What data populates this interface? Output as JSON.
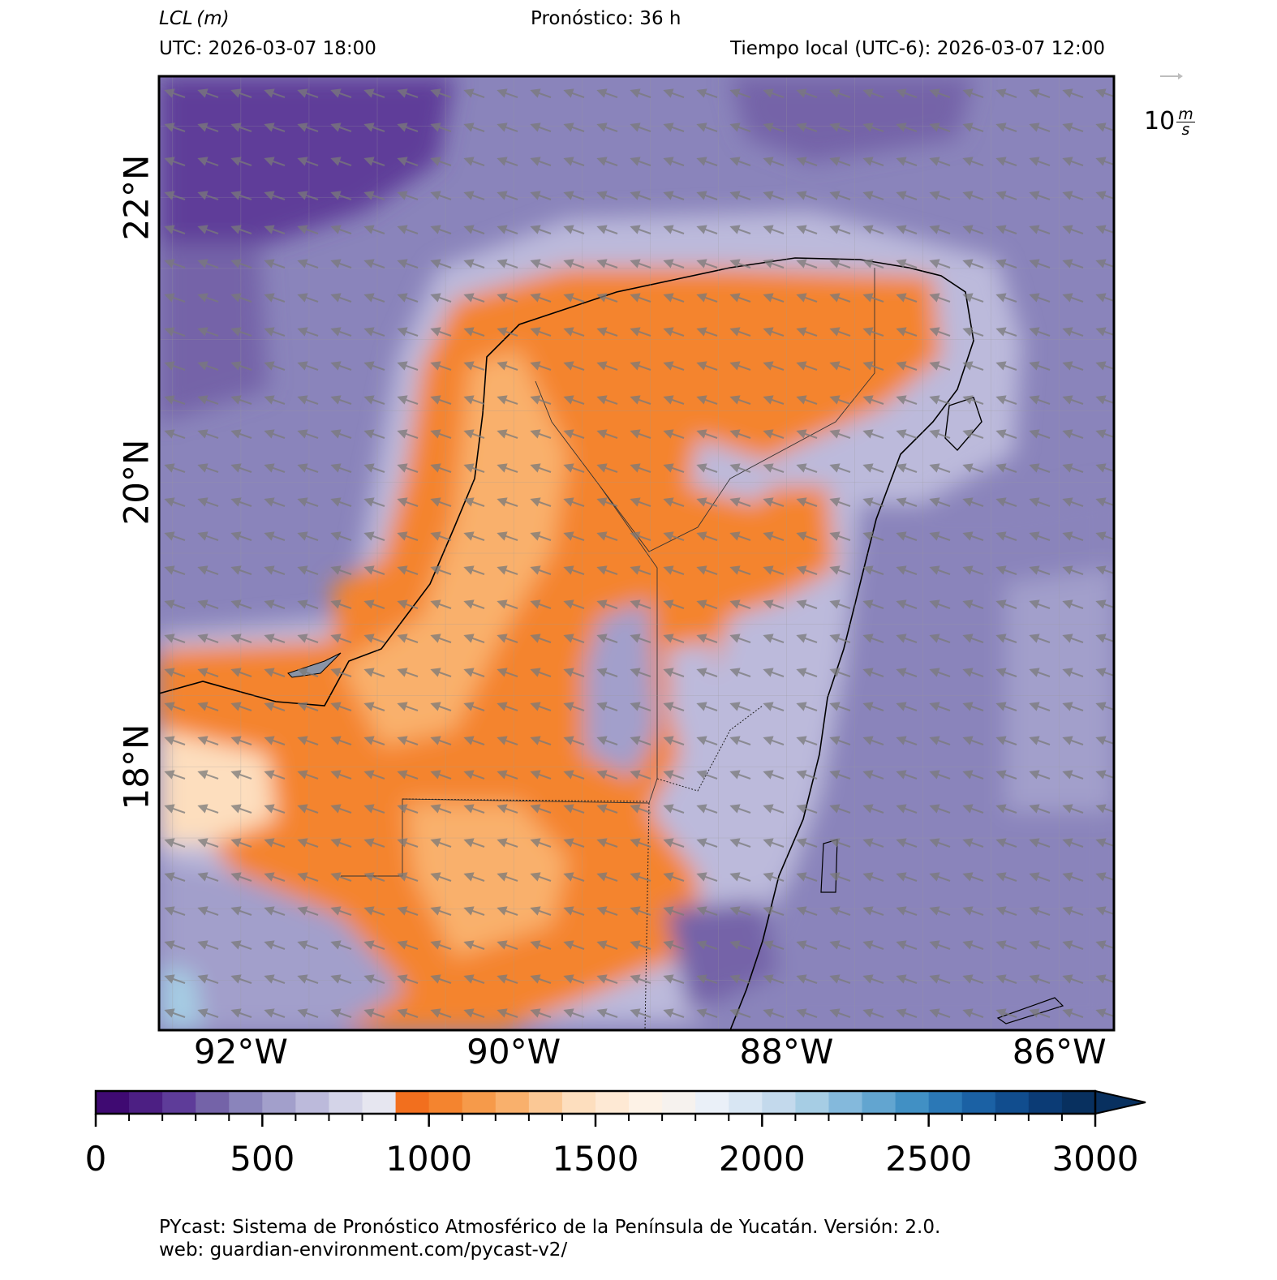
{
  "header": {
    "variable": "LCL",
    "unit": "(m)",
    "forecast": "Pronóstico: 36 h",
    "utc": "UTC:  2026-03-07 18:00",
    "local": "Tiempo local (UTC-6): 2026-03-07 12:00"
  },
  "map": {
    "lon_range": [
      -92.6,
      -85.6
    ],
    "lat_range": [
      16.15,
      22.85
    ],
    "lat_labels": [
      {
        "value": 22,
        "text": "22°N"
      },
      {
        "value": 20,
        "text": "20°N"
      },
      {
        "value": 18,
        "text": "18°N"
      }
    ],
    "lon_labels": [
      {
        "value": -92,
        "text": "92°W"
      },
      {
        "value": -90,
        "text": "90°W"
      },
      {
        "value": -88,
        "text": "88°W"
      },
      {
        "value": -86,
        "text": "86°W"
      }
    ],
    "wind_reference": {
      "value": "10",
      "unit_num": "m",
      "unit_den": "s"
    }
  },
  "colorbar": {
    "min": 0,
    "max": 3000,
    "step": 100,
    "extend": "max",
    "colors": [
      "#3f0a72",
      "#4c1f83",
      "#5e3c99",
      "#7463a8",
      "#8a84bb",
      "#a29fcb",
      "#bcbadb",
      "#d4d4e8",
      "#e6e6f0",
      "#f26f1e",
      "#f4842f",
      "#f69a4a",
      "#f9b06c",
      "#fbc895",
      "#fddebe",
      "#fee9d4",
      "#fdf2e6",
      "#f6f2ee",
      "#eaf0f8",
      "#d8e6f3",
      "#c3d9ec",
      "#a6cde4",
      "#84b9dc",
      "#62a5d0",
      "#4190c4",
      "#2b78b6",
      "#1b61a4",
      "#114d8e",
      "#0b3b75",
      "#08305f"
    ],
    "ticks": [
      {
        "value": 0,
        "text": "0"
      },
      {
        "value": 500,
        "text": "500"
      },
      {
        "value": 1000,
        "text": "1000"
      },
      {
        "value": 1500,
        "text": "1500"
      },
      {
        "value": 2000,
        "text": "2000"
      },
      {
        "value": 2500,
        "text": "2500"
      },
      {
        "value": 3000,
        "text": "3000"
      }
    ]
  },
  "footer": {
    "line1": "PYcast: Sistema de Pronóstico Atmosférico de la Península de Yucatán. Versión: 2.0.",
    "line2": "web: guardian-environment.com/pycast-v2/"
  }
}
